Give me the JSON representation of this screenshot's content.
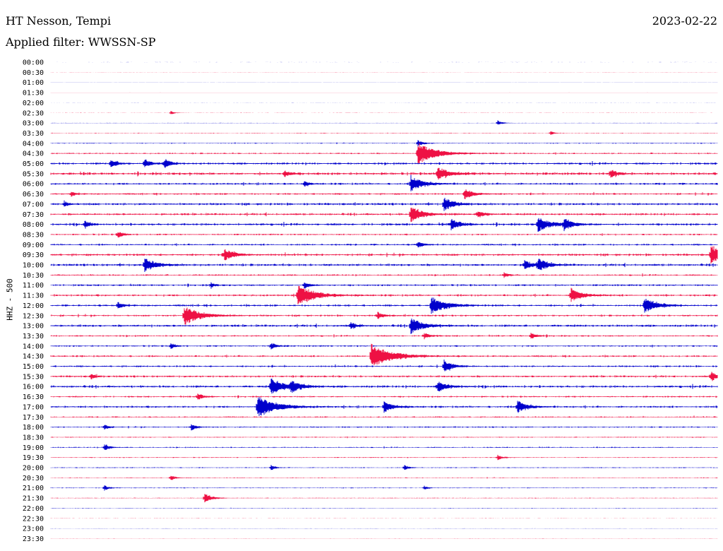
{
  "header": {
    "station": "HT Nesson, Tempi",
    "date": "2023-02-22",
    "filter_label": "Applied filter: WWSSN-SP"
  },
  "channel_label": "HHZ - 500",
  "colors": {
    "even_trace": "#0000cc",
    "odd_trace": "#ee1144"
  },
  "chart_data": {
    "type": "line",
    "title": "HT Nesson, Tempi",
    "ylabel": "HHZ - 500",
    "xlabel": "",
    "tick_labels": [
      "00:00",
      "00:30",
      "01:00",
      "01:30",
      "02:00",
      "02:30",
      "03:00",
      "03:30",
      "04:00",
      "04:30",
      "05:00",
      "05:30",
      "06:00",
      "06:30",
      "07:00",
      "07:30",
      "08:00",
      "08:30",
      "09:00",
      "09:30",
      "10:00",
      "10:30",
      "11:00",
      "11:30",
      "12:00",
      "12:30",
      "13:00",
      "13:30",
      "14:00",
      "14:30",
      "15:00",
      "15:30",
      "16:00",
      "16:30",
      "17:00",
      "17:30",
      "18:00",
      "18:30",
      "19:00",
      "19:30",
      "20:00",
      "20:30",
      "21:00",
      "21:30",
      "22:00",
      "22:30",
      "23:00",
      "23:30"
    ],
    "trace_minutes": 30,
    "noise_level": [
      0.05,
      0.08,
      0.04,
      0.06,
      0.05,
      0.1,
      0.15,
      0.25,
      0.35,
      0.55,
      0.85,
      1.0,
      0.8,
      0.7,
      0.9,
      0.85,
      0.9,
      0.6,
      0.7,
      0.9,
      0.9,
      0.6,
      0.7,
      0.8,
      0.8,
      0.7,
      0.9,
      0.6,
      0.6,
      0.7,
      0.7,
      0.8,
      0.9,
      0.6,
      0.8,
      0.5,
      0.5,
      0.4,
      0.4,
      0.35,
      0.35,
      0.3,
      0.3,
      0.25,
      0.2,
      0.1,
      0.1,
      0.1
    ],
    "events": [
      [],
      [],
      [],
      [],
      [],
      [
        [
          0.18,
          3
        ]
      ],
      [
        [
          0.67,
          4
        ]
      ],
      [
        [
          0.75,
          3
        ]
      ],
      [
        [
          0.55,
          5
        ]
      ],
      [
        [
          0.55,
          16
        ]
      ],
      [
        [
          0.09,
          6
        ],
        [
          0.14,
          6
        ],
        [
          0.17,
          6
        ]
      ],
      [
        [
          0.58,
          10
        ],
        [
          0.84,
          6
        ],
        [
          0.35,
          5
        ]
      ],
      [
        [
          0.54,
          11
        ],
        [
          0.38,
          4
        ]
      ],
      [
        [
          0.62,
          8
        ],
        [
          0.03,
          4
        ]
      ],
      [
        [
          0.59,
          9
        ],
        [
          0.02,
          4
        ]
      ],
      [
        [
          0.54,
          11
        ],
        [
          0.64,
          6
        ]
      ],
      [
        [
          0.73,
          11
        ],
        [
          0.77,
          8
        ],
        [
          0.6,
          8
        ],
        [
          0.05,
          5
        ]
      ],
      [
        [
          0.1,
          5
        ]
      ],
      [
        [
          0.55,
          5
        ]
      ],
      [
        [
          0.26,
          9
        ],
        [
          0.99,
          13
        ]
      ],
      [
        [
          0.14,
          10
        ],
        [
          0.71,
          7
        ],
        [
          0.73,
          9
        ]
      ],
      [
        [
          0.68,
          4
        ]
      ],
      [
        [
          0.38,
          5
        ],
        [
          0.24,
          4
        ]
      ],
      [
        [
          0.37,
          15
        ],
        [
          0.78,
          10
        ]
      ],
      [
        [
          0.57,
          13
        ],
        [
          0.1,
          5
        ],
        [
          0.89,
          11
        ]
      ],
      [
        [
          0.2,
          14
        ],
        [
          0.49,
          5
        ]
      ],
      [
        [
          0.54,
          11
        ],
        [
          0.45,
          5
        ]
      ],
      [
        [
          0.56,
          5
        ],
        [
          0.72,
          5
        ]
      ],
      [
        [
          0.18,
          4
        ],
        [
          0.33,
          5
        ]
      ],
      [
        [
          0.48,
          18
        ]
      ],
      [
        [
          0.59,
          8
        ]
      ],
      [
        [
          0.06,
          4
        ],
        [
          0.99,
          7
        ]
      ],
      [
        [
          0.33,
          12
        ],
        [
          0.36,
          8
        ],
        [
          0.58,
          8
        ]
      ],
      [
        [
          0.22,
          5
        ]
      ],
      [
        [
          0.31,
          16
        ],
        [
          0.5,
          8
        ],
        [
          0.7,
          9
        ]
      ],
      [],
      [
        [
          0.08,
          4
        ],
        [
          0.21,
          5
        ]
      ],
      [],
      [
        [
          0.08,
          5
        ]
      ],
      [
        [
          0.67,
          4
        ]
      ],
      [
        [
          0.33,
          4
        ],
        [
          0.53,
          4
        ]
      ],
      [
        [
          0.18,
          4
        ]
      ],
      [
        [
          0.08,
          4
        ],
        [
          0.56,
          3
        ]
      ],
      [
        [
          0.23,
          7
        ]
      ],
      [],
      [],
      [],
      []
    ]
  }
}
